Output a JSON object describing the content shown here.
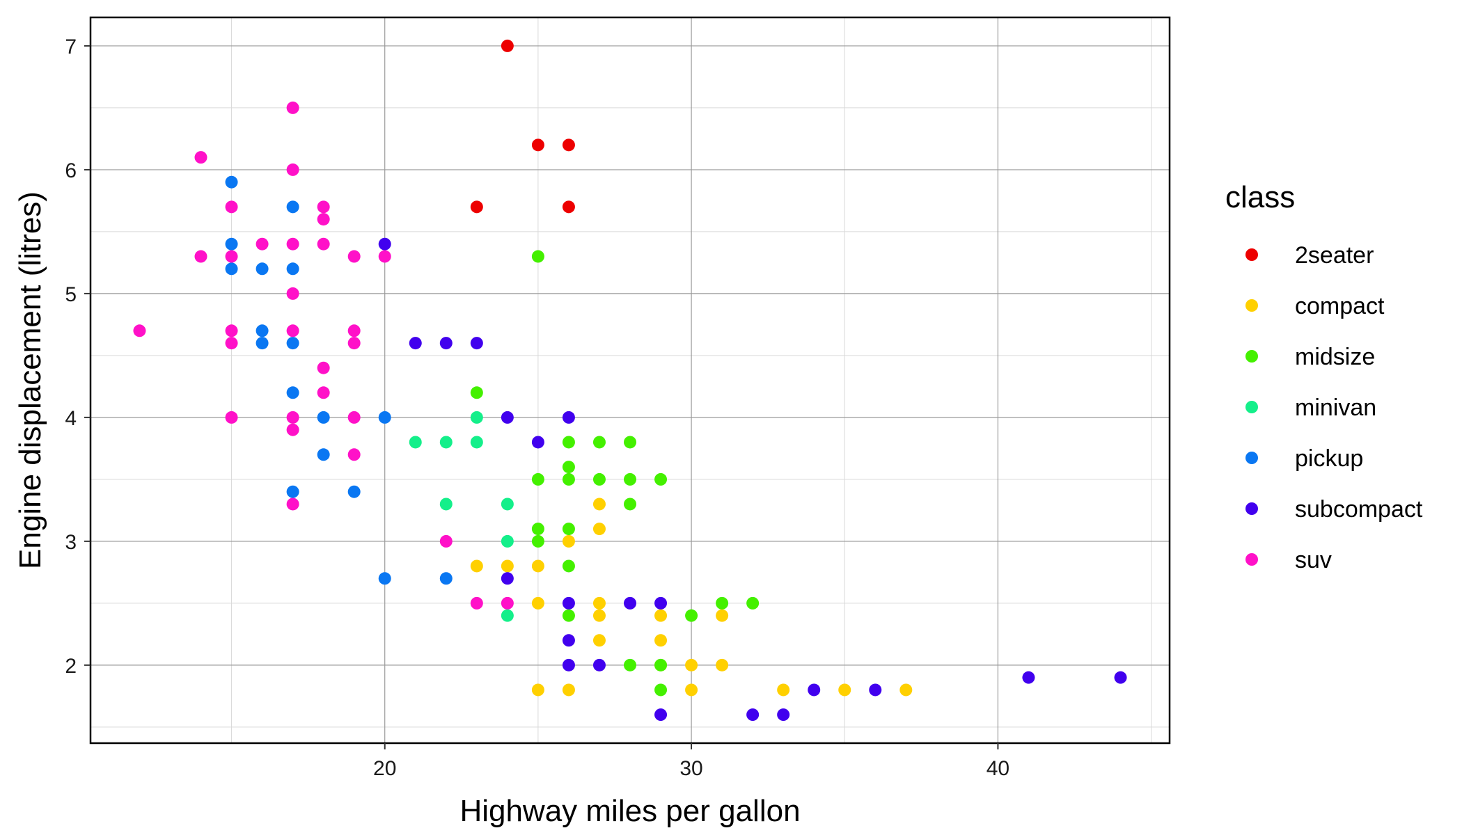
{
  "chart_data": {
    "type": "scatter",
    "title": "",
    "xlabel": "Highway miles per gallon",
    "ylabel": "Engine displacement (litres)",
    "xlim": [
      10.4,
      45.6
    ],
    "ylim": [
      1.37,
      7.23
    ],
    "x_ticks": [
      20,
      30,
      40
    ],
    "x_tick_labels": [
      "20",
      "30",
      "40"
    ],
    "y_ticks": [
      2,
      3,
      4,
      5,
      6,
      7
    ],
    "y_tick_labels": [
      "2",
      "3",
      "4",
      "5",
      "6",
      "7"
    ],
    "grid": true,
    "legend": {
      "title": "class",
      "position": "right"
    },
    "series": [
      {
        "name": "2seater",
        "color": "#ED0000",
        "points": [
          [
            24,
            7.0
          ],
          [
            25,
            6.2
          ],
          [
            26,
            6.2
          ],
          [
            23,
            5.7
          ],
          [
            26,
            5.7
          ]
        ]
      },
      {
        "name": "compact",
        "color": "#FFD000",
        "points": [
          [
            27,
            3.3
          ],
          [
            27,
            3.1
          ],
          [
            26,
            3.0
          ],
          [
            23,
            2.8
          ],
          [
            24,
            2.8
          ],
          [
            25,
            2.8
          ],
          [
            25,
            2.5
          ],
          [
            27,
            2.5
          ],
          [
            27,
            2.4
          ],
          [
            29,
            2.4
          ],
          [
            31,
            2.4
          ],
          [
            27,
            2.2
          ],
          [
            29,
            2.2
          ],
          [
            29,
            2.0
          ],
          [
            30,
            2.0
          ],
          [
            31,
            2.0
          ],
          [
            25,
            1.8
          ],
          [
            26,
            1.8
          ],
          [
            30,
            1.8
          ],
          [
            33,
            1.8
          ],
          [
            35,
            1.8
          ],
          [
            37,
            1.8
          ]
        ]
      },
      {
        "name": "midsize",
        "color": "#44F000",
        "points": [
          [
            25,
            5.3
          ],
          [
            23,
            4.2
          ],
          [
            26,
            3.8
          ],
          [
            27,
            3.8
          ],
          [
            28,
            3.8
          ],
          [
            26,
            3.6
          ],
          [
            25,
            3.5
          ],
          [
            26,
            3.5
          ],
          [
            27,
            3.5
          ],
          [
            28,
            3.5
          ],
          [
            29,
            3.5
          ],
          [
            28,
            3.3
          ],
          [
            25,
            3.1
          ],
          [
            26,
            3.1
          ],
          [
            25,
            3.0
          ],
          [
            26,
            2.8
          ],
          [
            31,
            2.5
          ],
          [
            32,
            2.5
          ],
          [
            26,
            2.4
          ],
          [
            30,
            2.4
          ],
          [
            28,
            2.0
          ],
          [
            29,
            2.0
          ],
          [
            29,
            1.8
          ]
        ]
      },
      {
        "name": "minivan",
        "color": "#14EF8A",
        "points": [
          [
            23,
            4.0
          ],
          [
            21,
            3.8
          ],
          [
            22,
            3.8
          ],
          [
            23,
            3.8
          ],
          [
            22,
            3.3
          ],
          [
            24,
            3.3
          ],
          [
            24,
            3.0
          ],
          [
            24,
            2.4
          ]
        ]
      },
      {
        "name": "pickup",
        "color": "#0A77F2",
        "points": [
          [
            15,
            5.9
          ],
          [
            17,
            5.7
          ],
          [
            15,
            5.4
          ],
          [
            15,
            5.2
          ],
          [
            16,
            5.2
          ],
          [
            17,
            5.2
          ],
          [
            16,
            4.7
          ],
          [
            16,
            4.6
          ],
          [
            17,
            4.6
          ],
          [
            17,
            4.2
          ],
          [
            18,
            4.0
          ],
          [
            20,
            4.0
          ],
          [
            18,
            3.7
          ],
          [
            17,
            3.4
          ],
          [
            19,
            3.4
          ],
          [
            20,
            2.7
          ],
          [
            22,
            2.7
          ]
        ]
      },
      {
        "name": "subcompact",
        "color": "#4100EE",
        "points": [
          [
            20,
            5.4
          ],
          [
            21,
            4.6
          ],
          [
            22,
            4.6
          ],
          [
            23,
            4.6
          ],
          [
            24,
            4.0
          ],
          [
            26,
            4.0
          ],
          [
            25,
            3.8
          ],
          [
            24,
            2.7
          ],
          [
            26,
            2.5
          ],
          [
            28,
            2.5
          ],
          [
            29,
            2.5
          ],
          [
            26,
            2.2
          ],
          [
            26,
            2.0
          ],
          [
            27,
            2.0
          ],
          [
            41,
            1.9
          ],
          [
            44,
            1.9
          ],
          [
            34,
            1.8
          ],
          [
            36,
            1.8
          ],
          [
            29,
            1.6
          ],
          [
            32,
            1.6
          ],
          [
            33,
            1.6
          ]
        ]
      },
      {
        "name": "suv",
        "color": "#FF11C8",
        "points": [
          [
            17,
            6.5
          ],
          [
            14,
            6.1
          ],
          [
            17,
            6.0
          ],
          [
            15,
            5.7
          ],
          [
            18,
            5.7
          ],
          [
            18,
            5.6
          ],
          [
            16,
            5.4
          ],
          [
            17,
            5.4
          ],
          [
            18,
            5.4
          ],
          [
            14,
            5.3
          ],
          [
            15,
            5.3
          ],
          [
            19,
            5.3
          ],
          [
            20,
            5.3
          ],
          [
            17,
            5.0
          ],
          [
            12,
            4.7
          ],
          [
            15,
            4.7
          ],
          [
            17,
            4.7
          ],
          [
            19,
            4.7
          ],
          [
            15,
            4.6
          ],
          [
            19,
            4.6
          ],
          [
            18,
            4.4
          ],
          [
            18,
            4.2
          ],
          [
            15,
            4.0
          ],
          [
            17,
            4.0
          ],
          [
            19,
            4.0
          ],
          [
            17,
            3.9
          ],
          [
            19,
            3.7
          ],
          [
            17,
            3.3
          ],
          [
            22,
            3.0
          ],
          [
            23,
            2.5
          ],
          [
            24,
            2.5
          ]
        ]
      }
    ]
  }
}
